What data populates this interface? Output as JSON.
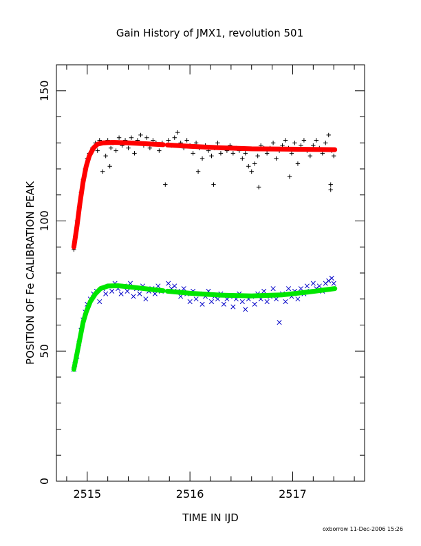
{
  "chart_data": {
    "type": "scatter",
    "title": "Gain History of JMX1, revolution 501",
    "xlabel": "TIME IN IJD",
    "ylabel": "POSITION OF Fe CALIBRATION PEAK",
    "footer": "oxborrow 11-Dec-2006 15:26",
    "xlim": [
      2514.7,
      2517.7
    ],
    "ylim": [
      0,
      160
    ],
    "x_ticks": [
      2515,
      2516,
      2517
    ],
    "x_tick_labels": [
      "2515",
      "2516",
      "2517"
    ],
    "y_ticks": [
      0,
      50,
      100,
      150
    ],
    "y_tick_labels": [
      "0",
      "50",
      "100",
      "150"
    ],
    "grid": false,
    "legend": "none",
    "series": [
      {
        "marker": "plus",
        "color": "#000000",
        "points": [
          [
            2514.87,
            89
          ],
          [
            2514.88,
            92
          ],
          [
            2514.89,
            95
          ],
          [
            2514.9,
            100
          ],
          [
            2514.92,
            105
          ],
          [
            2514.94,
            111
          ],
          [
            2514.96,
            116
          ],
          [
            2514.98,
            120
          ],
          [
            2515.0,
            124
          ],
          [
            2515.02,
            126
          ],
          [
            2515.05,
            128
          ],
          [
            2515.08,
            130
          ],
          [
            2515.1,
            127
          ],
          [
            2515.12,
            131
          ],
          [
            2515.15,
            130
          ],
          [
            2515.18,
            125
          ],
          [
            2515.2,
            131
          ],
          [
            2515.23,
            128
          ],
          [
            2515.25,
            130
          ],
          [
            2515.28,
            127
          ],
          [
            2515.31,
            132
          ],
          [
            2515.34,
            129
          ],
          [
            2515.37,
            131
          ],
          [
            2515.4,
            128
          ],
          [
            2515.43,
            132
          ],
          [
            2515.46,
            126
          ],
          [
            2515.49,
            131
          ],
          [
            2515.52,
            133
          ],
          [
            2515.55,
            129
          ],
          [
            2515.58,
            132
          ],
          [
            2515.61,
            128
          ],
          [
            2515.64,
            131
          ],
          [
            2515.67,
            130
          ],
          [
            2515.7,
            127
          ],
          [
            2515.73,
            130
          ],
          [
            2515.79,
            131
          ],
          [
            2515.82,
            129
          ],
          [
            2515.85,
            132
          ],
          [
            2515.88,
            134
          ],
          [
            2515.91,
            130
          ],
          [
            2515.94,
            128
          ],
          [
            2515.97,
            131
          ],
          [
            2516.0,
            129
          ],
          [
            2516.03,
            126
          ],
          [
            2516.06,
            130
          ],
          [
            2516.09,
            128
          ],
          [
            2516.12,
            124
          ],
          [
            2516.15,
            129
          ],
          [
            2516.18,
            127
          ],
          [
            2516.21,
            125
          ],
          [
            2516.24,
            128
          ],
          [
            2516.27,
            130
          ],
          [
            2516.3,
            126
          ],
          [
            2516.33,
            128
          ],
          [
            2516.36,
            127
          ],
          [
            2516.39,
            129
          ],
          [
            2516.42,
            126
          ],
          [
            2516.45,
            128
          ],
          [
            2516.48,
            127
          ],
          [
            2516.51,
            124
          ],
          [
            2516.54,
            126
          ],
          [
            2516.57,
            121
          ],
          [
            2516.6,
            119
          ],
          [
            2516.63,
            122
          ],
          [
            2516.66,
            125
          ],
          [
            2516.69,
            129
          ],
          [
            2516.72,
            128
          ],
          [
            2516.75,
            126
          ],
          [
            2516.78,
            128
          ],
          [
            2516.81,
            130
          ],
          [
            2516.84,
            124
          ],
          [
            2516.87,
            127
          ],
          [
            2516.9,
            129
          ],
          [
            2516.93,
            131
          ],
          [
            2516.96,
            128
          ],
          [
            2516.99,
            126
          ],
          [
            2517.02,
            130
          ],
          [
            2517.05,
            122
          ],
          [
            2517.08,
            129
          ],
          [
            2517.11,
            131
          ],
          [
            2517.14,
            127
          ],
          [
            2517.17,
            125
          ],
          [
            2517.2,
            129
          ],
          [
            2517.23,
            131
          ],
          [
            2517.26,
            128
          ],
          [
            2517.29,
            126
          ],
          [
            2517.32,
            130
          ],
          [
            2517.35,
            133
          ],
          [
            2517.38,
            127
          ],
          [
            2517.4,
            125
          ],
          [
            2515.15,
            119
          ],
          [
            2515.22,
            121
          ],
          [
            2515.76,
            114
          ],
          [
            2516.08,
            119
          ],
          [
            2516.23,
            114
          ],
          [
            2516.67,
            113
          ],
          [
            2516.97,
            117
          ],
          [
            2517.37,
            114
          ],
          [
            2517.37,
            112
          ]
        ]
      },
      {
        "marker": "cross",
        "color": "#0000c8",
        "points": [
          [
            2514.87,
            43
          ],
          [
            2514.88,
            45
          ],
          [
            2514.9,
            48
          ],
          [
            2514.92,
            53
          ],
          [
            2514.94,
            58
          ],
          [
            2514.96,
            62
          ],
          [
            2514.98,
            65
          ],
          [
            2515.0,
            68
          ],
          [
            2515.03,
            70
          ],
          [
            2515.06,
            72
          ],
          [
            2515.09,
            73
          ],
          [
            2515.12,
            69
          ],
          [
            2515.15,
            74
          ],
          [
            2515.18,
            72
          ],
          [
            2515.21,
            75
          ],
          [
            2515.24,
            73
          ],
          [
            2515.27,
            76
          ],
          [
            2515.3,
            74
          ],
          [
            2515.33,
            72
          ],
          [
            2515.36,
            75
          ],
          [
            2515.39,
            73
          ],
          [
            2515.42,
            76
          ],
          [
            2515.45,
            71
          ],
          [
            2515.48,
            74
          ],
          [
            2515.51,
            72
          ],
          [
            2515.54,
            75
          ],
          [
            2515.57,
            70
          ],
          [
            2515.6,
            73
          ],
          [
            2515.63,
            74
          ],
          [
            2515.66,
            72
          ],
          [
            2515.69,
            75
          ],
          [
            2515.72,
            73
          ],
          [
            2515.79,
            76
          ],
          [
            2515.82,
            74
          ],
          [
            2515.85,
            75
          ],
          [
            2515.88,
            73
          ],
          [
            2515.91,
            71
          ],
          [
            2515.94,
            74
          ],
          [
            2515.97,
            72
          ],
          [
            2516.0,
            69
          ],
          [
            2516.03,
            73
          ],
          [
            2516.06,
            70
          ],
          [
            2516.09,
            72
          ],
          [
            2516.12,
            68
          ],
          [
            2516.15,
            71
          ],
          [
            2516.18,
            73
          ],
          [
            2516.21,
            69
          ],
          [
            2516.24,
            71
          ],
          [
            2516.27,
            70
          ],
          [
            2516.3,
            72
          ],
          [
            2516.33,
            68
          ],
          [
            2516.36,
            70
          ],
          [
            2516.39,
            71
          ],
          [
            2516.42,
            67
          ],
          [
            2516.45,
            70
          ],
          [
            2516.48,
            72
          ],
          [
            2516.51,
            69
          ],
          [
            2516.54,
            66
          ],
          [
            2516.57,
            70
          ],
          [
            2516.6,
            71
          ],
          [
            2516.63,
            68
          ],
          [
            2516.66,
            72
          ],
          [
            2516.69,
            70
          ],
          [
            2516.72,
            73
          ],
          [
            2516.75,
            69
          ],
          [
            2516.78,
            71
          ],
          [
            2516.81,
            74
          ],
          [
            2516.84,
            70
          ],
          [
            2516.87,
            61
          ],
          [
            2516.9,
            72
          ],
          [
            2516.93,
            69
          ],
          [
            2516.96,
            74
          ],
          [
            2516.99,
            71
          ],
          [
            2517.02,
            73
          ],
          [
            2517.05,
            70
          ],
          [
            2517.08,
            74
          ],
          [
            2517.11,
            72
          ],
          [
            2517.14,
            75
          ],
          [
            2517.17,
            73
          ],
          [
            2517.2,
            76
          ],
          [
            2517.23,
            74
          ],
          [
            2517.26,
            75
          ],
          [
            2517.29,
            73
          ],
          [
            2517.32,
            76
          ],
          [
            2517.35,
            77
          ],
          [
            2517.38,
            78
          ],
          [
            2517.4,
            76
          ]
        ]
      }
    ],
    "fits": [
      {
        "color": "#ff0000",
        "points": [
          [
            2514.87,
            90
          ],
          [
            2514.9,
            98
          ],
          [
            2514.93,
            107
          ],
          [
            2514.96,
            115
          ],
          [
            2514.99,
            121
          ],
          [
            2515.02,
            125
          ],
          [
            2515.06,
            128
          ],
          [
            2515.1,
            129.5
          ],
          [
            2515.15,
            130
          ],
          [
            2515.25,
            130.2
          ],
          [
            2515.4,
            130
          ],
          [
            2515.55,
            129.7
          ],
          [
            2515.74,
            129.3
          ],
          [
            2515.76,
            null
          ],
          [
            2515.78,
            129.2
          ],
          [
            2516.0,
            128.7
          ],
          [
            2516.3,
            128.1
          ],
          [
            2516.6,
            127.7
          ],
          [
            2516.9,
            127.6
          ],
          [
            2517.2,
            127.5
          ],
          [
            2517.41,
            127.4
          ]
        ]
      },
      {
        "color": "#00e600",
        "points": [
          [
            2514.87,
            43
          ],
          [
            2514.9,
            49
          ],
          [
            2514.93,
            55
          ],
          [
            2514.96,
            61
          ],
          [
            2514.99,
            65
          ],
          [
            2515.03,
            69
          ],
          [
            2515.08,
            72
          ],
          [
            2515.13,
            74
          ],
          [
            2515.2,
            75
          ],
          [
            2515.3,
            75.1
          ],
          [
            2515.45,
            74.5
          ],
          [
            2515.6,
            73.8
          ],
          [
            2515.74,
            73.2
          ],
          [
            2515.76,
            null
          ],
          [
            2515.78,
            73
          ],
          [
            2516.0,
            72.2
          ],
          [
            2516.3,
            71.5
          ],
          [
            2516.6,
            71.2
          ],
          [
            2516.9,
            71.6
          ],
          [
            2517.15,
            72.7
          ],
          [
            2517.41,
            74
          ]
        ]
      }
    ]
  }
}
